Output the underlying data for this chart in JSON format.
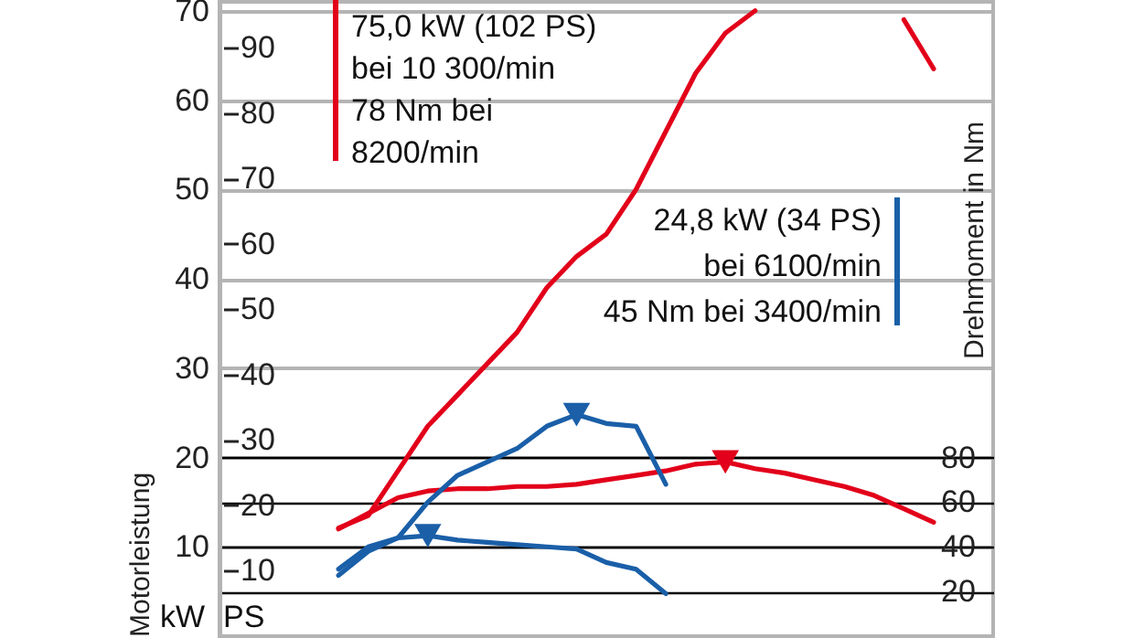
{
  "chart_data": {
    "type": "line",
    "categories": [
      null,
      null,
      null,
      null,
      null,
      null,
      null,
      null,
      null,
      null,
      null,
      null,
      null,
      null,
      null,
      null,
      null,
      null,
      null,
      null,
      null,
      null,
      null,
      null,
      null,
      null,
      null
    ],
    "series": [
      {
        "color": "#e2001a",
        "values": [
          null,
          null,
          null,
          null,
          12.1,
          13.5,
          18.5,
          23.5,
          27,
          30.5,
          34,
          39,
          42.5,
          45,
          50,
          56.5,
          63,
          67.5,
          70,
          null,
          null,
          null,
          null,
          null,
          null,
          null,
          null
        ]
      },
      {
        "color": "#e2001a",
        "values": [
          null,
          null,
          null,
          null,
          null,
          null,
          null,
          null,
          null,
          null,
          null,
          null,
          null,
          null,
          null,
          null,
          null,
          null,
          null,
          null,
          null,
          null,
          null,
          69,
          63.5,
          null,
          null
        ]
      },
      {
        "color": "#e2001a",
        "axis": "y2",
        "values": [
          null,
          null,
          null,
          null,
          48,
          55,
          62,
          65,
          66,
          66,
          67,
          67,
          68,
          70,
          72,
          74,
          77,
          78,
          75,
          73,
          70,
          67,
          63,
          57,
          51,
          null,
          null
        ]
      },
      {
        "color": "#1a5fa8",
        "values": [
          null,
          null,
          null,
          null,
          6.8,
          9.5,
          11,
          15,
          18,
          19.5,
          21,
          23.5,
          24.8,
          23.8,
          23.5,
          17,
          null,
          null,
          null,
          null,
          null,
          null,
          null,
          null,
          null,
          null,
          null
        ]
      },
      {
        "color": "#1a5fa8",
        "axis": "y2",
        "values": [
          null,
          null,
          null,
          null,
          30,
          40,
          44,
          45,
          43,
          42,
          41,
          40,
          39,
          33,
          30,
          19,
          null,
          null,
          null,
          null,
          null,
          null,
          null,
          null,
          null,
          null,
          null
        ]
      },
      {
        "type": "scatter",
        "marker": "triangle",
        "color": "#e2001a",
        "axis": "y2",
        "values": [
          null,
          null,
          null,
          null,
          null,
          null,
          null,
          null,
          null,
          null,
          null,
          null,
          null,
          null,
          null,
          null,
          null,
          78,
          null,
          null,
          null,
          null,
          null,
          null,
          null,
          null,
          null
        ]
      },
      {
        "type": "scatter",
        "marker": "triangle",
        "color": "#1a5fa8",
        "values": [
          null,
          null,
          null,
          null,
          null,
          null,
          null,
          null,
          null,
          null,
          null,
          null,
          24.8,
          null,
          null,
          null,
          null,
          null,
          null,
          null,
          null,
          null,
          null,
          null,
          null,
          null,
          null
        ]
      },
      {
        "type": "scatter",
        "marker": "triangle",
        "color": "#1a5fa8",
        "axis": "y2",
        "values": [
          null,
          null,
          null,
          null,
          null,
          null,
          null,
          45,
          null,
          null,
          null,
          null,
          null,
          null,
          null,
          null,
          null,
          null,
          null,
          null,
          null,
          null,
          null,
          null,
          null,
          null,
          null
        ]
      }
    ],
    "ylabel": "Motorleistung",
    "y2label": "Drehmoment in Nm",
    "ylim": [
      0,
      71
    ],
    "yticks": [
      10,
      20,
      30,
      40,
      50,
      60,
      70
    ],
    "y2lim": [
      0,
      284
    ],
    "y2ticks": [
      20,
      40,
      60,
      80
    ],
    "y3lim": [
      0,
      97
    ],
    "y3ticks": [
      10,
      20,
      30,
      40,
      50,
      60,
      70,
      80,
      90
    ],
    "grid": true,
    "annotations": [
      "75,0 kW (102 PS)",
      "bei 10 300/min",
      "78 Nm bei",
      "8200/min",
      "24,8 kW (34 PS)",
      "bei 6100/min",
      "45 Nm bei 3400/min",
      "kW",
      "PS"
    ]
  }
}
